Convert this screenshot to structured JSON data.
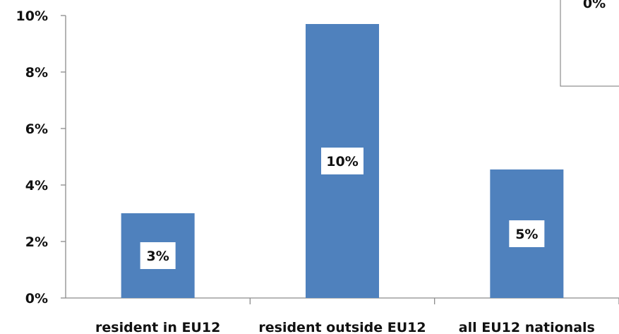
{
  "chart_data": {
    "type": "bar",
    "categories": [
      "resident in EU12",
      "resident outside EU12",
      "all EU12 nationals"
    ],
    "values": [
      3.0,
      9.7,
      4.55
    ],
    "data_labels": [
      "3%",
      "10%",
      "5%"
    ],
    "y_ticks": [
      "0%",
      "2%",
      "4%",
      "6%",
      "8%",
      "10%"
    ],
    "ylim": [
      0,
      10
    ],
    "grid": false,
    "bar_color": "#4f81bd",
    "title": "",
    "xlabel": "",
    "ylabel": ""
  },
  "inset": {
    "label": "0%"
  }
}
